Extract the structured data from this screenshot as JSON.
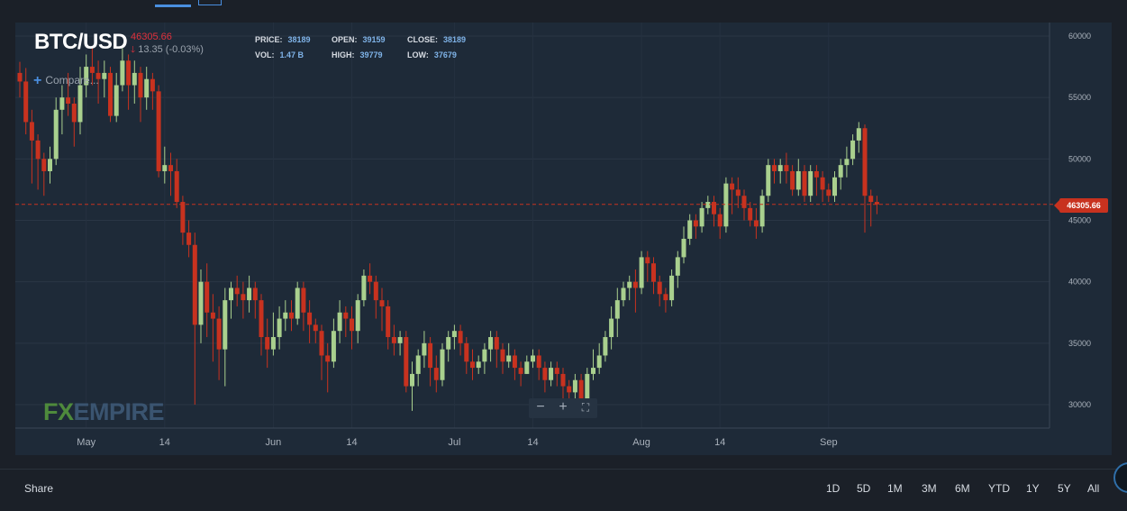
{
  "header": {
    "symbol": "BTC/USD",
    "last_price": "46305.66",
    "change_arrow": "🡓",
    "change_text": "13.35 (-0.03%)",
    "price_label": "PRICE:",
    "price_value": "38189",
    "open_label": "OPEN:",
    "open_value": "39159",
    "close_label": "CLOSE:",
    "close_value": "38189",
    "vol_label": "VOL:",
    "vol_value": "1.47 B",
    "high_label": "HIGH:",
    "high_value": "39779",
    "low_label": "LOW:",
    "low_value": "37679"
  },
  "compare_label": "Compare...",
  "watermark": {
    "fx": "FX",
    "empire": "EMPIRE"
  },
  "zoom": {
    "minus": "−",
    "plus": "+",
    "fit": "⛶"
  },
  "current_price_tag": "46305.66",
  "footer": {
    "share": "Share",
    "ranges": [
      "1D",
      "5D",
      "1M",
      "3M",
      "6M",
      "YTD",
      "1Y",
      "5Y",
      "All"
    ]
  },
  "colors": {
    "up": "#a9d08e",
    "down": "#c8321f",
    "price_line": "#c8321f"
  },
  "chart_data": {
    "type": "candlestick",
    "y_ticks": [
      30000,
      35000,
      40000,
      45000,
      50000,
      55000,
      60000
    ],
    "ylim": [
      29000,
      61000
    ],
    "x_ticks": [
      {
        "label": "May",
        "day": 11
      },
      {
        "label": "14",
        "day": 24
      },
      {
        "label": "Jun",
        "day": 42
      },
      {
        "label": "14",
        "day": 55
      },
      {
        "label": "Jul",
        "day": 72
      },
      {
        "label": "14",
        "day": 85
      },
      {
        "label": "Aug",
        "day": 103
      },
      {
        "label": "14",
        "day": 116
      },
      {
        "label": "Sep",
        "day": 134
      }
    ],
    "current_price": 46305.66,
    "candles": [
      [
        57000,
        56300,
        57900,
        55000
      ],
      [
        56300,
        53000,
        57400,
        52000
      ],
      [
        53000,
        51500,
        54000,
        48000
      ],
      [
        51500,
        50000,
        52000,
        47500
      ],
      [
        50000,
        49000,
        50500,
        47000
      ],
      [
        49000,
        50000,
        51000,
        48000
      ],
      [
        50000,
        54000,
        55000,
        49500
      ],
      [
        54000,
        55000,
        56000,
        52000
      ],
      [
        55000,
        54500,
        57000,
        53500
      ],
      [
        54500,
        53000,
        55000,
        51000
      ],
      [
        53000,
        56000,
        57500,
        52000
      ],
      [
        56000,
        57500,
        58500,
        55000
      ],
      [
        57500,
        57000,
        59000,
        56000
      ],
      [
        57000,
        56500,
        58000,
        54500
      ],
      [
        56500,
        57000,
        58000,
        55000
      ],
      [
        57000,
        53500,
        57500,
        53000
      ],
      [
        53500,
        56000,
        57000,
        53000
      ],
      [
        56000,
        58000,
        59000,
        55500
      ],
      [
        58000,
        56000,
        58500,
        54000
      ],
      [
        56000,
        57000,
        58000,
        54500
      ],
      [
        57000,
        55000,
        57500,
        53000
      ],
      [
        55000,
        56500,
        57500,
        54000
      ],
      [
        56500,
        55500,
        57000,
        54000
      ],
      [
        55500,
        49000,
        56000,
        48500
      ],
      [
        49000,
        49500,
        51000,
        48000
      ],
      [
        49500,
        49000,
        50500,
        47000
      ],
      [
        49000,
        46500,
        50000,
        46000
      ],
      [
        46500,
        44000,
        47000,
        43000
      ],
      [
        44000,
        43000,
        45000,
        42000
      ],
      [
        43000,
        36500,
        44000,
        30000
      ],
      [
        36500,
        40000,
        41000,
        35000
      ],
      [
        40000,
        37500,
        41500,
        35500
      ],
      [
        37500,
        37000,
        39000,
        33500
      ],
      [
        37000,
        34500,
        38000,
        32000
      ],
      [
        34500,
        38500,
        39500,
        31500
      ],
      [
        38500,
        39500,
        40000,
        37000
      ],
      [
        39500,
        39000,
        40500,
        38000
      ],
      [
        39000,
        38500,
        40000,
        37000
      ],
      [
        38500,
        39500,
        40500,
        37500
      ],
      [
        39500,
        38500,
        40000,
        37000
      ],
      [
        38500,
        35500,
        39000,
        34000
      ],
      [
        35500,
        34500,
        37000,
        33000
      ],
      [
        34500,
        35500,
        37500,
        34000
      ],
      [
        35500,
        37000,
        38000,
        34500
      ],
      [
        37000,
        37500,
        38500,
        36000
      ],
      [
        37500,
        37000,
        38500,
        36000
      ],
      [
        37000,
        39500,
        40000,
        36500
      ],
      [
        39500,
        37500,
        40000,
        36000
      ],
      [
        37500,
        36500,
        38500,
        35000
      ],
      [
        36500,
        36000,
        37000,
        35000
      ],
      [
        36000,
        34000,
        36500,
        32000
      ],
      [
        34000,
        33500,
        35000,
        31000
      ],
      [
        33500,
        36000,
        37000,
        33000
      ],
      [
        36000,
        37500,
        38500,
        35000
      ],
      [
        37500,
        37000,
        38000,
        35500
      ],
      [
        37000,
        36000,
        38000,
        34500
      ],
      [
        36000,
        38500,
        39000,
        35000
      ],
      [
        38500,
        40500,
        41000,
        38000
      ],
      [
        40500,
        40000,
        41500,
        39000
      ],
      [
        40000,
        38500,
        40500,
        37000
      ],
      [
        38500,
        38000,
        39500,
        36000
      ],
      [
        38000,
        35500,
        38500,
        34500
      ],
      [
        35500,
        35000,
        36500,
        34000
      ],
      [
        35000,
        35500,
        36000,
        34000
      ],
      [
        35500,
        31500,
        36000,
        31000
      ],
      [
        31500,
        32500,
        33500,
        29500
      ],
      [
        32500,
        34000,
        34500,
        31500
      ],
      [
        34000,
        35000,
        36000,
        33000
      ],
      [
        35000,
        33000,
        35500,
        31500
      ],
      [
        33000,
        32000,
        34000,
        31000
      ],
      [
        32000,
        34500,
        35000,
        31500
      ],
      [
        34500,
        35500,
        36000,
        33500
      ],
      [
        35500,
        36000,
        36500,
        34500
      ],
      [
        36000,
        35000,
        36500,
        34000
      ],
      [
        35000,
        33500,
        35500,
        32500
      ],
      [
        33500,
        33000,
        34500,
        32000
      ],
      [
        33000,
        33500,
        34000,
        32500
      ],
      [
        33500,
        34500,
        35000,
        32500
      ],
      [
        34500,
        35500,
        36000,
        33500
      ],
      [
        35500,
        34500,
        36000,
        33000
      ],
      [
        34500,
        33500,
        35000,
        32500
      ],
      [
        33500,
        34000,
        35000,
        33000
      ],
      [
        34000,
        33000,
        34500,
        32000
      ],
      [
        33000,
        32500,
        33500,
        31500
      ],
      [
        32500,
        33500,
        34000,
        32500
      ],
      [
        33500,
        34000,
        34500,
        33000
      ],
      [
        34000,
        33000,
        34500,
        32000
      ],
      [
        33000,
        32000,
        33500,
        31000
      ],
      [
        32000,
        33000,
        33500,
        31500
      ],
      [
        33000,
        32500,
        33500,
        31500
      ],
      [
        32500,
        31500,
        33000,
        30500
      ],
      [
        31500,
        31000,
        32000,
        30000
      ],
      [
        31000,
        32000,
        32500,
        30500
      ],
      [
        32000,
        30000,
        32500,
        29500
      ],
      [
        30000,
        32500,
        33000,
        29500
      ],
      [
        32500,
        33000,
        34500,
        32000
      ],
      [
        33000,
        34000,
        35000,
        32500
      ],
      [
        34000,
        35500,
        36000,
        33500
      ],
      [
        35500,
        37000,
        38000,
        34500
      ],
      [
        37000,
        38500,
        39500,
        35500
      ],
      [
        38500,
        39500,
        40000,
        38000
      ],
      [
        39500,
        40000,
        40500,
        38500
      ],
      [
        40000,
        39500,
        41000,
        37500
      ],
      [
        39500,
        42000,
        42500,
        39000
      ],
      [
        42000,
        41500,
        42500,
        40000
      ],
      [
        41500,
        40000,
        42000,
        39000
      ],
      [
        40000,
        39000,
        40500,
        38000
      ],
      [
        39000,
        38500,
        39500,
        37500
      ],
      [
        38500,
        40500,
        41000,
        38000
      ],
      [
        40500,
        42000,
        42500,
        39500
      ],
      [
        42000,
        43500,
        44500,
        41500
      ],
      [
        43500,
        45000,
        45500,
        43000
      ],
      [
        45000,
        44500,
        45500,
        43500
      ],
      [
        44500,
        46000,
        46500,
        44000
      ],
      [
        46000,
        46500,
        47000,
        45500
      ],
      [
        46500,
        45500,
        47000,
        44500
      ],
      [
        45500,
        44500,
        46000,
        43500
      ],
      [
        44500,
        48000,
        48500,
        44000
      ],
      [
        48000,
        47500,
        48500,
        45500
      ],
      [
        47500,
        47000,
        48500,
        46000
      ],
      [
        47000,
        46000,
        47500,
        45000
      ],
      [
        46000,
        45000,
        46500,
        44500
      ],
      [
        45000,
        44500,
        46000,
        43500
      ],
      [
        44500,
        47000,
        47500,
        44000
      ],
      [
        47000,
        49500,
        50000,
        46500
      ],
      [
        49500,
        49000,
        50000,
        48000
      ],
      [
        49000,
        49500,
        50000,
        48000
      ],
      [
        49500,
        49000,
        50500,
        48000
      ],
      [
        49000,
        47500,
        49500,
        47000
      ],
      [
        47500,
        49000,
        50000,
        47000
      ],
      [
        49000,
        47000,
        49500,
        46500
      ],
      [
        47000,
        49000,
        49500,
        46500
      ],
      [
        49000,
        48500,
        49500,
        47000
      ],
      [
        48500,
        47500,
        49000,
        46500
      ],
      [
        47500,
        47000,
        48000,
        46500
      ],
      [
        47000,
        48500,
        49000,
        46500
      ],
      [
        48500,
        49500,
        50000,
        47500
      ],
      [
        49500,
        50000,
        51000,
        48500
      ],
      [
        50000,
        51500,
        52000,
        49500
      ],
      [
        51500,
        52500,
        53000,
        50500
      ],
      [
        52500,
        47000,
        52800,
        44000
      ],
      [
        47000,
        46500,
        47500,
        44500
      ],
      [
        46500,
        46300,
        47000,
        45500
      ]
    ]
  }
}
